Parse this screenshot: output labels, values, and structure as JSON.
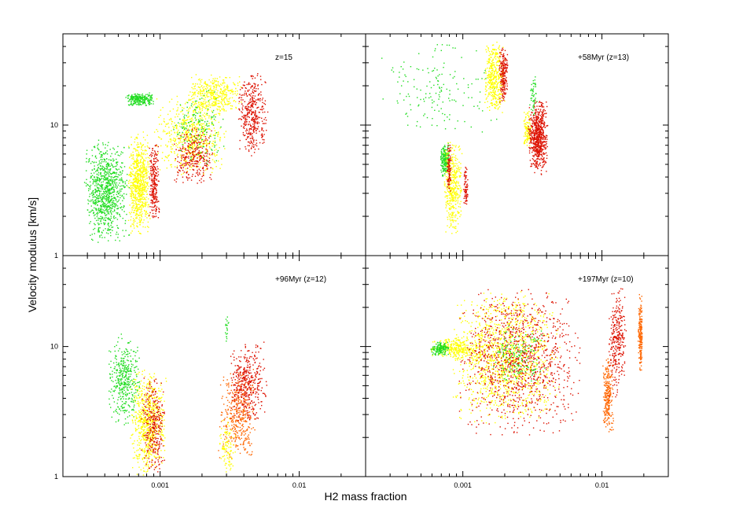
{
  "chart_data": {
    "type": "scatter",
    "xlabel": "H2 mass fraction",
    "ylabel": "Velocity modulus [km/s]",
    "x_scale": "log",
    "y_scale": "log",
    "xlim": [
      0.0002,
      0.03
    ],
    "ylim": [
      1,
      50
    ],
    "x_ticks": [
      0.001,
      0.01
    ],
    "x_tick_labels": [
      "0.001",
      "0.01"
    ],
    "y_ticks": [
      1,
      10
    ],
    "y_tick_labels": [
      "1",
      "10"
    ],
    "grid": false,
    "colors": {
      "green": "#22dd22",
      "yellow": "#ffff00",
      "orange": "#ff6600",
      "red": "#dd1100",
      "frame": "#000000"
    },
    "panels": [
      {
        "label": "z=15",
        "clusters": [
          {
            "color": "green",
            "x": [
              0.00028,
              0.0006
            ],
            "y": [
              1.2,
              8.0
            ],
            "n": 900
          },
          {
            "color": "green",
            "x": [
              0.00055,
              0.0009
            ],
            "y": [
              14,
              18
            ],
            "n": 250
          },
          {
            "color": "yellow",
            "x": [
              0.00058,
              0.00085
            ],
            "y": [
              1.4,
              9.0
            ],
            "n": 700
          },
          {
            "color": "red",
            "x": [
              0.00082,
              0.00098
            ],
            "y": [
              1.7,
              7.5
            ],
            "n": 250
          },
          {
            "color": "yellow",
            "x": [
              0.0009,
              0.003
            ],
            "y": [
              4.0,
              18
            ],
            "n": 600
          },
          {
            "color": "red",
            "x": [
              0.0012,
              0.0025
            ],
            "y": [
              3.5,
              10
            ],
            "n": 300
          },
          {
            "color": "yellow",
            "x": [
              0.0015,
              0.004
            ],
            "y": [
              12,
              25
            ],
            "n": 400
          },
          {
            "color": "red",
            "x": [
              0.0035,
              0.006
            ],
            "y": [
              5.5,
              26
            ],
            "n": 400
          },
          {
            "color": "green",
            "x": [
              0.0012,
              0.003
            ],
            "y": [
              5,
              20
            ],
            "n": 150
          }
        ]
      },
      {
        "label": "+58Myr (z=13)",
        "clusters": [
          {
            "color": "green",
            "x": [
              0.00022,
              0.0019
            ],
            "y": [
              8,
              45
            ],
            "n": 160
          },
          {
            "color": "yellow",
            "x": [
              0.0014,
              0.002
            ],
            "y": [
              12,
              45
            ],
            "n": 400
          },
          {
            "color": "red",
            "x": [
              0.0018,
              0.0021
            ],
            "y": [
              14,
              42
            ],
            "n": 200
          },
          {
            "color": "green",
            "x": [
              0.00068,
              0.0008
            ],
            "y": [
              4,
              7.5
            ],
            "n": 200
          },
          {
            "color": "yellow",
            "x": [
              0.00072,
              0.00098
            ],
            "y": [
              1.4,
              8
            ],
            "n": 400
          },
          {
            "color": "red",
            "x": [
              0.00076,
              0.00082
            ],
            "y": [
              3,
              7.5
            ],
            "n": 100
          },
          {
            "color": "red",
            "x": [
              0.001,
              0.00108
            ],
            "y": [
              2.3,
              5
            ],
            "n": 80
          },
          {
            "color": "yellow",
            "x": [
              0.0027,
              0.0031
            ],
            "y": [
              6.5,
              13
            ],
            "n": 100
          },
          {
            "color": "red",
            "x": [
              0.0029,
              0.0041
            ],
            "y": [
              4.2,
              16
            ],
            "n": 700
          },
          {
            "color": "green",
            "x": [
              0.003,
              0.0034
            ],
            "y": [
              12,
              25
            ],
            "n": 50
          }
        ]
      },
      {
        "label": "+96Myr (z=12)",
        "clusters": [
          {
            "color": "green",
            "x": [
              0.00042,
              0.00072
            ],
            "y": [
              2.5,
              13
            ],
            "n": 400
          },
          {
            "color": "yellow",
            "x": [
              0.0006,
              0.0011
            ],
            "y": [
              1.0,
              7
            ],
            "n": 700
          },
          {
            "color": "red",
            "x": [
              0.00072,
              0.0011
            ],
            "y": [
              1.0,
              6
            ],
            "n": 300
          },
          {
            "color": "orange",
            "x": [
              0.0026,
              0.005
            ],
            "y": [
              1.3,
              7
            ],
            "n": 400
          },
          {
            "color": "red",
            "x": [
              0.003,
              0.006
            ],
            "y": [
              2.5,
              11
            ],
            "n": 400
          },
          {
            "color": "yellow",
            "x": [
              0.0026,
              0.0035
            ],
            "y": [
              1.0,
              3
            ],
            "n": 100
          },
          {
            "color": "green",
            "x": [
              0.0029,
              0.0031
            ],
            "y": [
              10,
              18
            ],
            "n": 20
          }
        ]
      },
      {
        "label": "+197Myr (z=10)",
        "clusters": [
          {
            "color": "yellow",
            "x": [
              0.00055,
              0.0015
            ],
            "y": [
              8,
              12
            ],
            "n": 300
          },
          {
            "color": "green",
            "x": [
              0.00058,
              0.0008
            ],
            "y": [
              8.5,
              11
            ],
            "n": 150
          },
          {
            "color": "yellow",
            "x": [
              0.0008,
              0.005
            ],
            "y": [
              2.5,
              28
            ],
            "n": 1300
          },
          {
            "color": "red",
            "x": [
              0.0009,
              0.007
            ],
            "y": [
              2.0,
              30
            ],
            "n": 1100
          },
          {
            "color": "green",
            "x": [
              0.0015,
              0.004
            ],
            "y": [
              5,
              15
            ],
            "n": 150
          },
          {
            "color": "orange",
            "x": [
              0.01,
              0.012
            ],
            "y": [
              2.0,
              9
            ],
            "n": 250
          },
          {
            "color": "red",
            "x": [
              0.011,
              0.015
            ],
            "y": [
              4,
              30
            ],
            "n": 300
          },
          {
            "color": "orange",
            "x": [
              0.018,
              0.0195
            ],
            "y": [
              6,
              26
            ],
            "n": 200
          }
        ]
      }
    ]
  }
}
